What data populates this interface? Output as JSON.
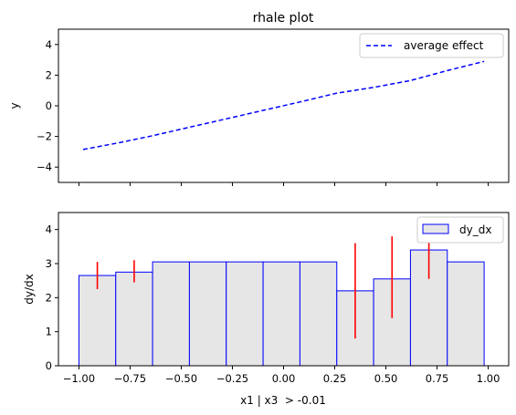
{
  "chart_data": [
    {
      "type": "line",
      "title": "rhale plot",
      "xlabel": "",
      "ylabel": "y",
      "xlim": [
        -1.1,
        1.1
      ],
      "ylim": [
        -5,
        5
      ],
      "yticks": [
        -4,
        -2,
        0,
        2,
        4
      ],
      "ytick_labels": [
        "−4",
        "−2",
        "0",
        "2",
        "4"
      ],
      "legend_position": "top-right",
      "series": [
        {
          "name": "average effect",
          "color": "#0000ff",
          "style": "dashed",
          "x": [
            -0.98,
            -0.82,
            -0.64,
            -0.46,
            -0.28,
            -0.1,
            0.08,
            0.26,
            0.44,
            0.62,
            0.8,
            0.98
          ],
          "y": [
            -2.85,
            -2.45,
            -1.95,
            -1.4,
            -0.85,
            -0.3,
            0.25,
            0.83,
            1.2,
            1.65,
            2.3,
            2.9
          ]
        }
      ]
    },
    {
      "type": "bar",
      "xlabel": "x1 | x3  > -0.01",
      "ylabel": "dy/dx",
      "xlim": [
        -1.1,
        1.1
      ],
      "ylim": [
        0,
        4.5
      ],
      "yticks": [
        0,
        1,
        2,
        3,
        4
      ],
      "ytick_labels": [
        "0",
        "1",
        "2",
        "3",
        "4"
      ],
      "xticks": [
        -1.0,
        -0.75,
        -0.5,
        -0.25,
        0.0,
        0.25,
        0.5,
        0.75,
        1.0
      ],
      "xtick_labels": [
        "−1.00",
        "−0.75",
        "−0.50",
        "−0.25",
        "0.00",
        "0.25",
        "0.50",
        "0.75",
        "1.00"
      ],
      "legend_position": "top-right",
      "series": [
        {
          "name": "dy_dx",
          "fill": "#e6e6e6",
          "edge": "#0000ff",
          "bin_edges": [
            -1.0,
            -0.82,
            -0.64,
            -0.46,
            -0.28,
            -0.1,
            0.08,
            0.26,
            0.44,
            0.62,
            0.8,
            0.98
          ],
          "values": [
            2.65,
            2.75,
            3.05,
            3.05,
            3.05,
            3.05,
            3.05,
            2.2,
            2.55,
            3.4,
            3.05
          ]
        }
      ],
      "error_bars": {
        "color": "#ff0000",
        "items": [
          {
            "x": -0.91,
            "low": 2.25,
            "high": 3.05
          },
          {
            "x": -0.73,
            "low": 2.45,
            "high": 3.1
          },
          {
            "x": 0.35,
            "low": 0.8,
            "high": 3.6
          },
          {
            "x": 0.53,
            "low": 1.4,
            "high": 3.8
          },
          {
            "x": 0.71,
            "low": 2.55,
            "high": 4.25
          }
        ]
      }
    }
  ]
}
